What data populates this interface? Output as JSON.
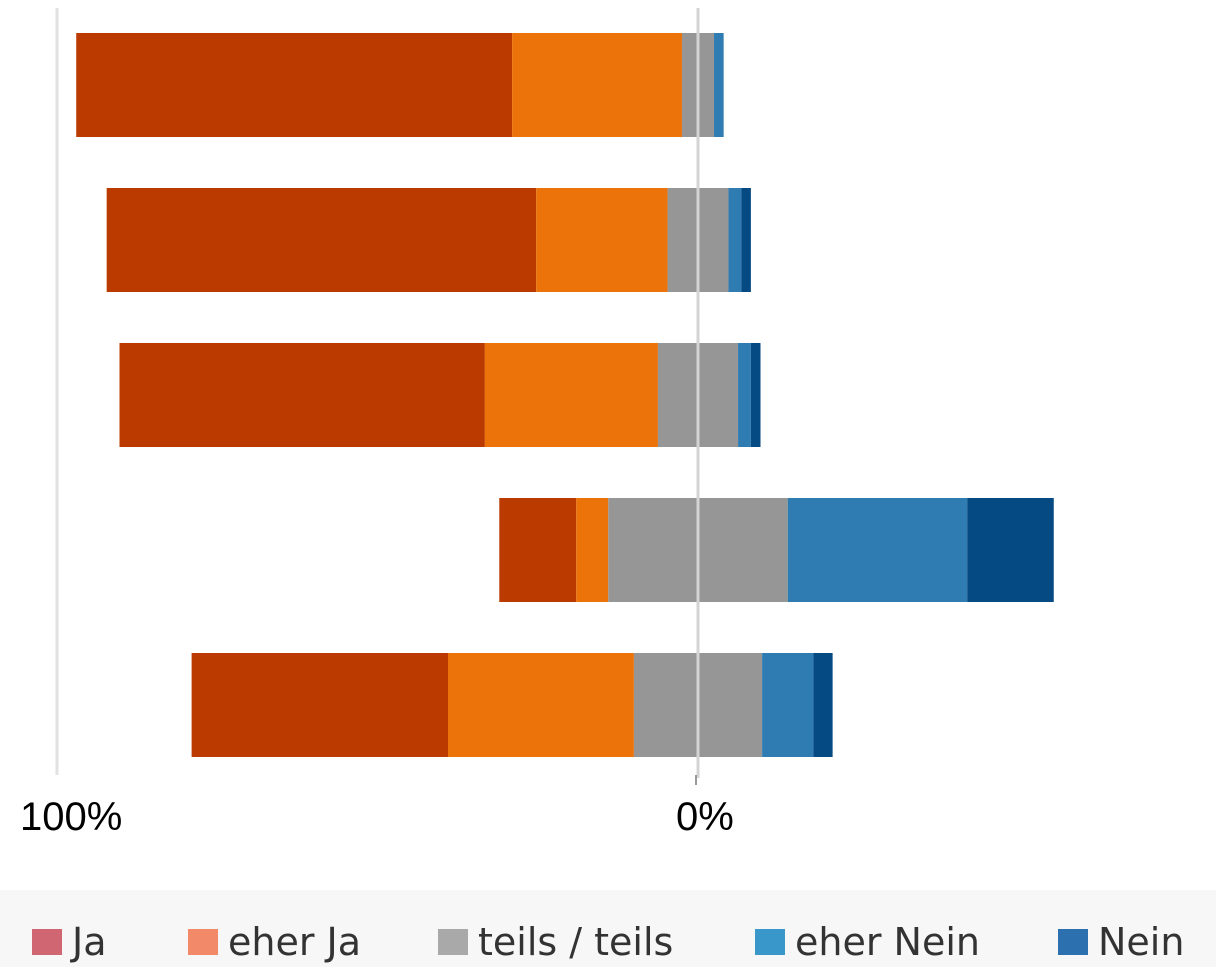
{
  "chart_data": {
    "type": "bar",
    "orientation": "horizontal-diverging",
    "xlabel": "",
    "ylabel": "",
    "tick_labels": {
      "left": "100%",
      "center": "0%"
    },
    "xlim": [
      -100,
      100
    ],
    "grid": false,
    "legend_position": "bottom",
    "series": [
      {
        "name": "Ja",
        "color": "#bb3a00",
        "values": [
          68,
          67,
          57,
          12,
          40
        ]
      },
      {
        "name": "eher Ja",
        "color": "#eb730a",
        "values": [
          26.5,
          20.5,
          27,
          5,
          29
        ]
      },
      {
        "name": "teils / teils",
        "color": "#969696",
        "values": [
          5,
          9.5,
          12.5,
          28,
          20
        ]
      },
      {
        "name": "eher Nein",
        "color": "#2f7cb3",
        "values": [
          1.5,
          2,
          2,
          28,
          8
        ]
      },
      {
        "name": "Nein",
        "color": "#054a82",
        "values": [
          0,
          1.5,
          1.5,
          13.5,
          3
        ]
      }
    ],
    "neutral_series": "teils / teils"
  },
  "legend": {
    "swatch_colors": [
      "#cf6672",
      "#f28a6a",
      "#a9a9a9",
      "#3a97c9",
      "#2c70b0"
    ]
  }
}
